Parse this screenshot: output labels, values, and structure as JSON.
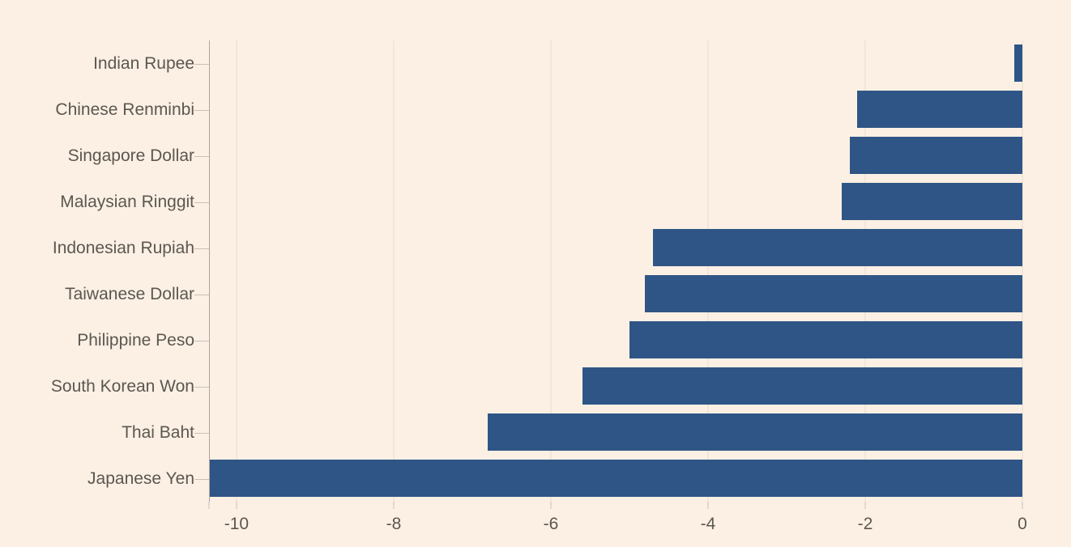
{
  "chart_data": {
    "type": "bar",
    "orientation": "horizontal",
    "title": "",
    "xlabel": "",
    "ylabel": "",
    "categories": [
      "Indian Rupee",
      "Chinese Renminbi",
      "Singapore Dollar",
      "Malaysian Ringgit",
      "Indonesian Rupiah",
      "Taiwanese Dollar",
      "Philippine Peso",
      "South Korean Won",
      "Thai Baht",
      "Japanese Yen"
    ],
    "values": [
      -0.1,
      -2.1,
      -2.2,
      -2.3,
      -4.7,
      -4.8,
      -5.0,
      -5.6,
      -6.8,
      -10.35
    ],
    "xlim": [
      -10.35,
      0
    ],
    "x_ticks": [
      -10,
      -8,
      -6,
      -4,
      -2,
      0
    ],
    "x_tick_labels": [
      "-10",
      "-8",
      "-6",
      "-4",
      "-2",
      "0"
    ],
    "grid": "vertical-gridlines-on",
    "legend": "none"
  },
  "colors": {
    "background": "#fcf0e4",
    "bar": "#2f5586",
    "gridline": "#e6dbce",
    "axis_line": "#aba49b",
    "tick": "#c9c0b6",
    "label_text": "#5b5750"
  }
}
